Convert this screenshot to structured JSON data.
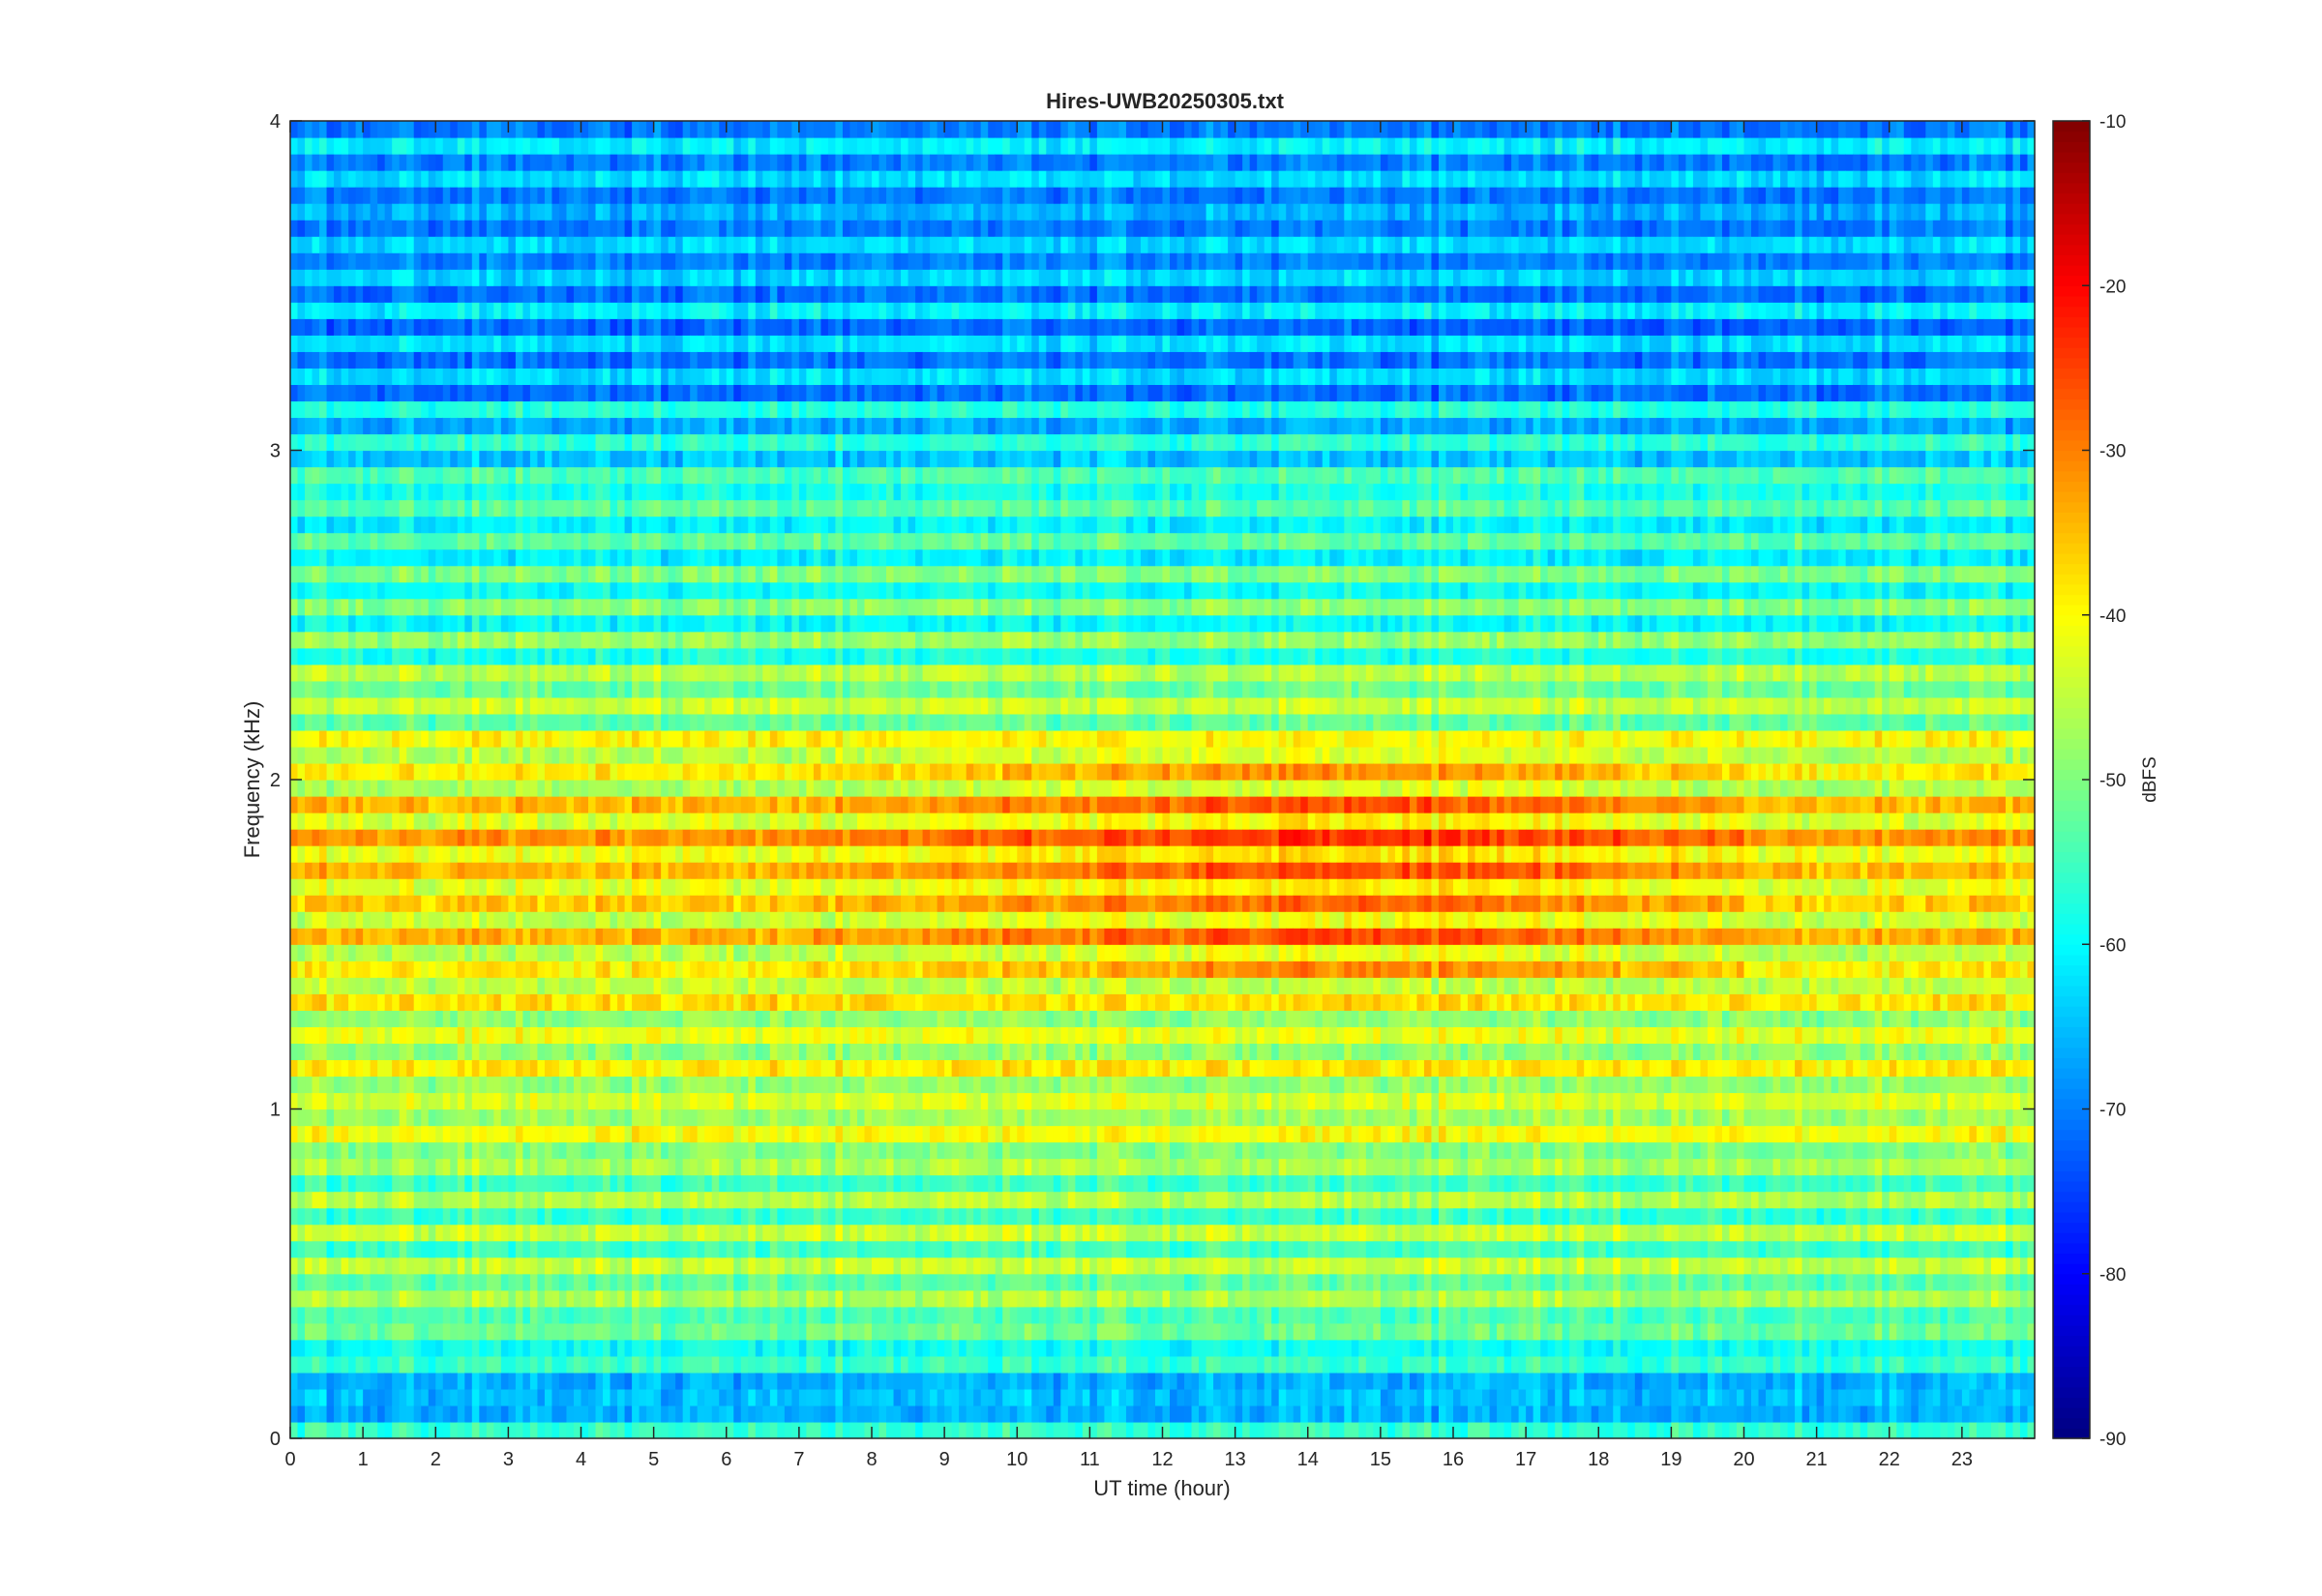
{
  "chart_data": {
    "type": "heatmap",
    "title": "Hires-UWB20250305.txt",
    "xlabel": "UT time (hour)",
    "ylabel": "Frequency (kHz)",
    "xlim": [
      0,
      24
    ],
    "ylim": [
      0,
      4
    ],
    "x_ticks": [
      "0",
      "1",
      "2",
      "3",
      "4",
      "5",
      "6",
      "7",
      "8",
      "9",
      "10",
      "11",
      "12",
      "13",
      "14",
      "15",
      "16",
      "17",
      "18",
      "19",
      "20",
      "21",
      "22",
      "23"
    ],
    "y_ticks": [
      "0",
      "1",
      "2",
      "3",
      "4"
    ],
    "colorbar": {
      "label": "dBFS",
      "range": [
        -90,
        -10
      ],
      "ticks": [
        "-10",
        "-20",
        "-30",
        "-40",
        "-50",
        "-60",
        "-70",
        "-80",
        "-90"
      ],
      "colormap": "jet"
    },
    "grid": false,
    "band_profile": [
      {
        "freq_khz": 0.0,
        "level_dbfs": -72
      },
      {
        "freq_khz": 0.05,
        "level_dbfs": -50
      },
      {
        "freq_khz": 0.1,
        "level_dbfs": -72
      },
      {
        "freq_khz": 0.3,
        "level_dbfs": -54
      },
      {
        "freq_khz": 0.5,
        "level_dbfs": -50
      },
      {
        "freq_khz": 0.75,
        "level_dbfs": -50
      },
      {
        "freq_khz": 1.05,
        "level_dbfs": -44
      },
      {
        "freq_khz": 1.35,
        "level_dbfs": -44
      },
      {
        "freq_khz": 1.6,
        "level_dbfs": -38
      },
      {
        "freq_khz": 1.75,
        "level_dbfs": -37
      },
      {
        "freq_khz": 1.95,
        "level_dbfs": -40
      },
      {
        "freq_khz": 2.2,
        "level_dbfs": -48
      },
      {
        "freq_khz": 2.5,
        "level_dbfs": -54
      },
      {
        "freq_khz": 3.0,
        "level_dbfs": -58
      },
      {
        "freq_khz": 3.2,
        "level_dbfs": -65
      },
      {
        "freq_khz": 3.6,
        "level_dbfs": -68
      },
      {
        "freq_khz": 4.0,
        "level_dbfs": -65
      }
    ],
    "activity_peak_hours": [
      10,
      19
    ],
    "activity_peak_boost_dbfs": 8
  }
}
